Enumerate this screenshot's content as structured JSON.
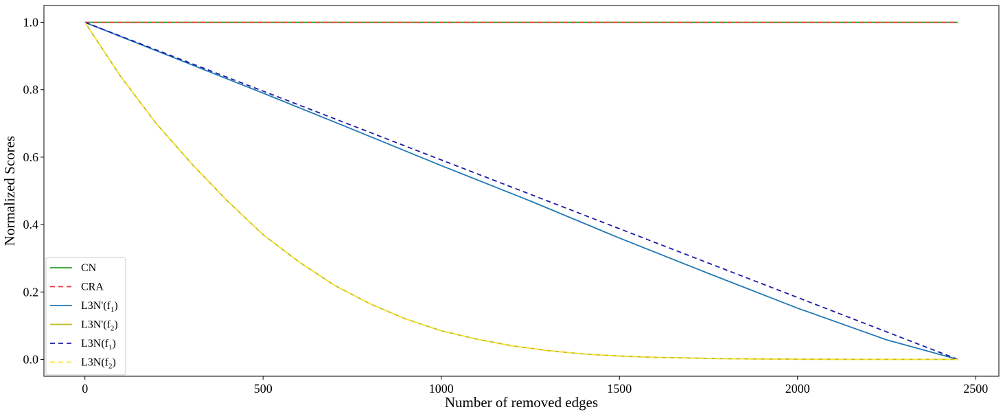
{
  "chart_data": {
    "type": "line",
    "title": "",
    "xlabel": "Number of removed edges",
    "ylabel": "Normalized Scores",
    "xlim": [
      -115,
      2565
    ],
    "ylim": [
      -0.05,
      1.05
    ],
    "xticks": [
      0,
      500,
      1000,
      1500,
      2000,
      2500
    ],
    "xtick_labels": [
      "0",
      "500",
      "1000",
      "1500",
      "2000",
      "2500"
    ],
    "yticks": [
      0.0,
      0.2,
      0.4,
      0.6,
      0.8,
      1.0
    ],
    "ytick_labels": [
      "0.0",
      "0.2",
      "0.4",
      "0.6",
      "0.8",
      "1.0"
    ],
    "grid": false,
    "legend_position": "lower-left",
    "x_max": 2450,
    "series": [
      {
        "name": "CN",
        "label_main": "CN",
        "label_sub": "",
        "label_tail": "",
        "color": "#2ca02c",
        "dashed": false,
        "x": [
          0,
          2450
        ],
        "y": [
          1.0,
          1.0
        ]
      },
      {
        "name": "CRA",
        "label_main": "CRA",
        "label_sub": "",
        "label_tail": "",
        "color": "#e8383d",
        "dashed": true,
        "x": [
          0,
          2450
        ],
        "y": [
          1.0,
          1.0
        ]
      },
      {
        "name": "L3N'(f1)",
        "label_main": "L3N'(f",
        "label_sub": "1",
        "label_tail": ")",
        "color": "#1f77b4",
        "dashed": false,
        "x": [
          0,
          250,
          500,
          750,
          1000,
          1250,
          1500,
          1750,
          2000,
          2250,
          2450
        ],
        "y": [
          1.0,
          0.895,
          0.79,
          0.683,
          0.575,
          0.47,
          0.36,
          0.255,
          0.152,
          0.058,
          0.0
        ]
      },
      {
        "name": "L3N'(f2)",
        "label_main": "L3N'(f",
        "label_sub": "2",
        "label_tail": ")",
        "color": "#bcbd22",
        "dashed": false,
        "x": [
          0,
          100,
          200,
          300,
          400,
          500,
          600,
          700,
          800,
          900,
          1000,
          1100,
          1200,
          1300,
          1400,
          1500,
          1600,
          1800,
          2000,
          2200,
          2450
        ],
        "y": [
          1.0,
          0.84,
          0.7,
          0.58,
          0.47,
          0.37,
          0.29,
          0.22,
          0.165,
          0.12,
          0.085,
          0.06,
          0.04,
          0.026,
          0.016,
          0.01,
          0.006,
          0.002,
          0.0005,
          0.0001,
          0.0
        ]
      },
      {
        "name": "L3N(f1)",
        "label_main": "L3N(f",
        "label_sub": "1",
        "label_tail": ")",
        "color": "#1a1aa6",
        "dashed": true,
        "x": [
          0,
          2450
        ],
        "y": [
          1.0,
          0.0
        ]
      },
      {
        "name": "L3N(f2)",
        "label_main": "L3N(f",
        "label_sub": "2",
        "label_tail": ")",
        "color": "#ffe22e",
        "dashed": true,
        "x": [
          0,
          100,
          200,
          300,
          400,
          500,
          600,
          700,
          800,
          900,
          1000,
          1100,
          1200,
          1300,
          1400,
          1500,
          1600,
          1800,
          2000,
          2200,
          2450
        ],
        "y": [
          1.0,
          0.84,
          0.7,
          0.58,
          0.47,
          0.37,
          0.29,
          0.22,
          0.165,
          0.12,
          0.085,
          0.06,
          0.04,
          0.026,
          0.016,
          0.01,
          0.006,
          0.002,
          0.0005,
          0.0001,
          0.0
        ]
      }
    ]
  }
}
